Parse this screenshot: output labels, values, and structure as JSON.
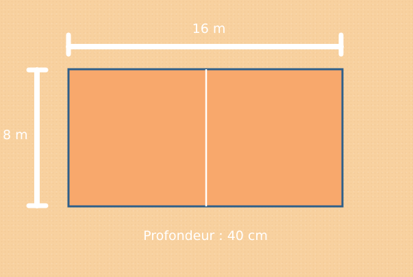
{
  "diagram": {
    "width_label": "16 m",
    "height_label": "8 m",
    "depth_label": "Profondeur : 40 cm"
  },
  "colors": {
    "background": "#f8d19f",
    "pool_fill": "#f8a86c",
    "pool_border": "#2e5f8a",
    "dimension_lines": "#ffffff"
  }
}
